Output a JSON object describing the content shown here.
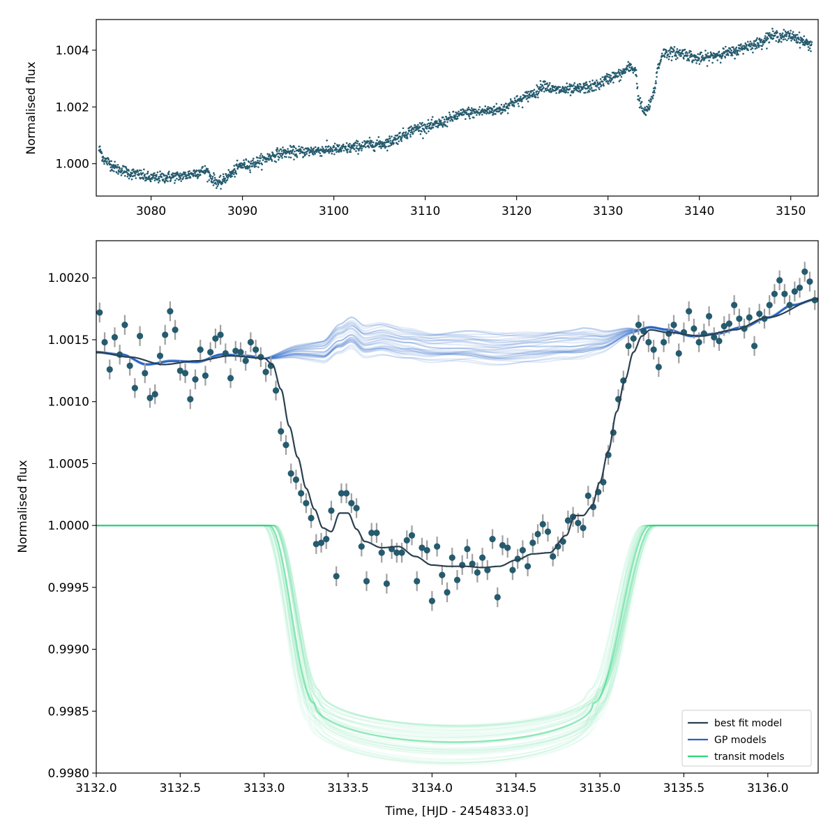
{
  "colors": {
    "data_point": "#255b6e",
    "error_bar": "#a0a0a0",
    "best_fit": "#2a3f50",
    "gp": "#2462c8",
    "transit": "#2ed67a",
    "axis": "#000000"
  },
  "chart_data": [
    {
      "id": "top",
      "type": "scatter",
      "title": "",
      "xlabel": "",
      "ylabel": "Normalised flux",
      "xlim": [
        3074.0,
        3153.0
      ],
      "ylim": [
        0.99886,
        1.00508
      ],
      "xticks": [
        3080,
        3090,
        3100,
        3110,
        3120,
        3130,
        3140,
        3150
      ],
      "xtick_labels": [
        "3080",
        "3090",
        "3100",
        "3110",
        "3120",
        "3130",
        "3140",
        "3150"
      ],
      "yticks": [
        1.0,
        1.002,
        1.004
      ],
      "ytick_labels": [
        "1.000",
        "1.002",
        "1.004"
      ],
      "trend_nodes": {
        "x": [
          3074.3,
          3075.0,
          3076.5,
          3078.0,
          3080.0,
          3083.0,
          3086.0,
          3086.8,
          3087.5,
          3088.5,
          3090.0,
          3095.0,
          3100.0,
          3105.0,
          3110.0,
          3115.0,
          3118.0,
          3120.0,
          3122.0,
          3123.0,
          3124.0,
          3126.0,
          3128.0,
          3131.0,
          3132.5,
          3133.0,
          3133.4,
          3134.0,
          3134.5,
          3135.0,
          3135.5,
          3136.0,
          3138.0,
          3140.0,
          3143.0,
          3146.0,
          3148.0,
          3150.0,
          3152.3
        ],
        "y": [
          1.0005,
          1.0001,
          0.9998,
          0.99965,
          0.9995,
          0.99955,
          0.99975,
          0.99945,
          0.9993,
          0.9996,
          0.99995,
          1.0004,
          1.0005,
          1.0007,
          1.0013,
          1.0018,
          1.0019,
          1.0022,
          1.0025,
          1.0028,
          1.0026,
          1.0026,
          1.0027,
          1.0031,
          1.0034,
          1.0033,
          1.0022,
          1.0018,
          1.002,
          1.0025,
          1.0034,
          1.0039,
          1.0039,
          1.0037,
          1.0039,
          1.0042,
          1.0045,
          1.0045,
          1.0042
        ]
      },
      "scatter_sigma": 0.00018,
      "n_points": 2300
    },
    {
      "id": "bottom",
      "type": "line",
      "title": "",
      "xlabel": "Time, [HJD - 2454833.0]",
      "ylabel": "Normalised flux",
      "xlim": [
        3132.0,
        3136.3
      ],
      "ylim": [
        0.998,
        1.0023
      ],
      "xticks": [
        3132.0,
        3132.5,
        3133.0,
        3133.5,
        3134.0,
        3134.5,
        3135.0,
        3135.5,
        3136.0
      ],
      "xtick_labels": [
        "3132.0",
        "3132.5",
        "3133.0",
        "3133.5",
        "3134.0",
        "3134.5",
        "3135.0",
        "3135.5",
        "3136.0"
      ],
      "yticks": [
        0.998,
        0.9985,
        0.999,
        0.9995,
        1.0,
        1.0005,
        1.001,
        1.0015,
        1.002
      ],
      "ytick_labels": [
        "0.9980",
        "0.9985",
        "0.9990",
        "0.9995",
        "1.0000",
        "1.0005",
        "1.0010",
        "1.0015",
        "1.0020"
      ],
      "transit": {
        "t_center": 3134.185,
        "ingress_start": 3133.03,
        "ingress_end": 3133.3,
        "egress_start": 3134.96,
        "egress_end": 3135.3,
        "depth_min": 1.0016,
        "depth_max": 1.00195,
        "n_models": 40
      },
      "gp_baseline": {
        "x": [
          3132.0,
          3132.15,
          3132.3,
          3132.45,
          3132.6,
          3132.75,
          3132.9,
          3133.0,
          3133.2,
          3133.35,
          3133.45,
          3133.52,
          3133.6,
          3133.7,
          3133.85,
          3134.0,
          3134.2,
          3134.4,
          3134.6,
          3134.8,
          3135.0,
          3135.2,
          3135.3,
          3135.4,
          3135.55,
          3135.7,
          3135.85,
          3136.0,
          3136.15,
          3136.3
        ],
        "y": [
          1.0014,
          1.00138,
          1.0013,
          1.00133,
          1.00132,
          1.00138,
          1.00137,
          1.00135,
          1.0014,
          1.0014,
          1.0015,
          1.00155,
          1.00148,
          1.0015,
          1.00146,
          1.00143,
          1.00144,
          1.00142,
          1.00143,
          1.00145,
          1.00148,
          1.00157,
          1.0016,
          1.00158,
          1.00153,
          1.00155,
          1.0016,
          1.00168,
          1.00178,
          1.00183
        ]
      },
      "best_fit": {
        "x": [
          3132.0,
          3132.2,
          3132.4,
          3132.6,
          3132.8,
          3133.0,
          3133.05,
          3133.1,
          3133.15,
          3133.2,
          3133.25,
          3133.3,
          3133.35,
          3133.4,
          3133.45,
          3133.5,
          3133.55,
          3133.6,
          3133.7,
          3133.8,
          3133.9,
          3134.0,
          3134.1,
          3134.2,
          3134.3,
          3134.4,
          3134.5,
          3134.6,
          3134.7,
          3134.8,
          3134.85,
          3134.9,
          3134.95,
          3135.0,
          3135.05,
          3135.1,
          3135.15,
          3135.2,
          3135.25,
          3135.3,
          3135.4,
          3135.6,
          3135.8,
          3136.0,
          3136.3
        ],
        "y": [
          1.0014,
          1.00136,
          1.0013,
          1.00133,
          1.00137,
          1.00135,
          1.0013,
          1.0011,
          1.0008,
          1.00055,
          1.0003,
          1.00013,
          0.99998,
          0.99995,
          1.0001,
          1.0001,
          0.99997,
          0.99987,
          0.99982,
          0.99983,
          0.99975,
          0.99968,
          0.99967,
          0.99967,
          0.99966,
          0.99967,
          0.99972,
          0.99977,
          0.99978,
          0.99992,
          1.00008,
          1.00008,
          1.00015,
          1.00035,
          1.0006,
          1.00092,
          1.00118,
          1.0014,
          1.00153,
          1.00158,
          1.00156,
          1.00153,
          1.00158,
          1.00168,
          1.00183
        ]
      },
      "points": {
        "x": [
          3132.02,
          3132.05,
          3132.08,
          3132.11,
          3132.14,
          3132.17,
          3132.2,
          3132.23,
          3132.26,
          3132.29,
          3132.32,
          3132.35,
          3132.38,
          3132.41,
          3132.44,
          3132.47,
          3132.5,
          3132.53,
          3132.56,
          3132.59,
          3132.62,
          3132.65,
          3132.68,
          3132.71,
          3132.74,
          3132.77,
          3132.8,
          3132.83,
          3132.86,
          3132.89,
          3132.92,
          3132.95,
          3132.98,
          3133.01,
          3133.04,
          3133.07,
          3133.1,
          3133.13,
          3133.16,
          3133.19,
          3133.22,
          3133.25,
          3133.28,
          3133.31,
          3133.34,
          3133.37,
          3133.4,
          3133.43,
          3133.46,
          3133.49,
          3133.52,
          3133.55,
          3133.58,
          3133.61,
          3133.64,
          3133.67,
          3133.7,
          3133.73,
          3133.76,
          3133.79,
          3133.82,
          3133.85,
          3133.88,
          3133.91,
          3133.94,
          3133.97,
          3134.0,
          3134.03,
          3134.06,
          3134.09,
          3134.12,
          3134.15,
          3134.18,
          3134.21,
          3134.24,
          3134.27,
          3134.3,
          3134.33,
          3134.36,
          3134.39,
          3134.42,
          3134.45,
          3134.48,
          3134.51,
          3134.54,
          3134.57,
          3134.6,
          3134.63,
          3134.66,
          3134.69,
          3134.72,
          3134.75,
          3134.78,
          3134.81,
          3134.84,
          3134.87,
          3134.9,
          3134.93,
          3134.96,
          3134.99,
          3135.02,
          3135.05,
          3135.08,
          3135.11,
          3135.14,
          3135.17,
          3135.2,
          3135.23,
          3135.26,
          3135.29,
          3135.32,
          3135.35,
          3135.38,
          3135.41,
          3135.44,
          3135.47,
          3135.5,
          3135.53,
          3135.56,
          3135.59,
          3135.62,
          3135.65,
          3135.68,
          3135.71,
          3135.74,
          3135.77,
          3135.8,
          3135.83,
          3135.86,
          3135.89,
          3135.92,
          3135.95,
          3135.98,
          3136.01,
          3136.04,
          3136.07,
          3136.1,
          3136.13,
          3136.16,
          3136.19,
          3136.22,
          3136.25,
          3136.28
        ],
        "y": [
          1.00172,
          1.00148,
          1.00126,
          1.00152,
          1.00138,
          1.00162,
          1.00129,
          1.00111,
          1.00153,
          1.00123,
          1.00103,
          1.00106,
          1.00137,
          1.00154,
          1.00173,
          1.00158,
          1.00125,
          1.00123,
          1.00102,
          1.00118,
          1.00142,
          1.00121,
          1.0014,
          1.00151,
          1.00154,
          1.00139,
          1.00119,
          1.00141,
          1.0014,
          1.00133,
          1.00148,
          1.00142,
          1.00136,
          1.00124,
          1.00129,
          1.00109,
          1.00076,
          1.00065,
          1.00042,
          1.00037,
          1.00026,
          1.00018,
          1.00006,
          0.99985,
          0.99986,
          0.99989,
          1.00012,
          0.99959,
          1.00026,
          1.00026,
          1.00018,
          1.00014,
          0.99983,
          0.99955,
          0.99994,
          0.99994,
          0.99978,
          0.99953,
          0.99981,
          0.99978,
          0.99978,
          0.99988,
          0.99992,
          0.99955,
          0.99982,
          0.9998,
          0.99939,
          0.99983,
          0.9996,
          0.99946,
          0.99974,
          0.99956,
          0.99968,
          0.99981,
          0.99969,
          0.99962,
          0.99974,
          0.99964,
          0.99989,
          0.99942,
          0.99984,
          0.99982,
          0.99964,
          0.99973,
          0.9998,
          0.99967,
          0.99986,
          0.99993,
          1.00001,
          0.99995,
          0.99975,
          0.99983,
          0.99987,
          1.00004,
          1.00007,
          1.00002,
          0.99998,
          1.00024,
          1.00015,
          1.00027,
          1.00035,
          1.00057,
          1.00075,
          1.00102,
          1.00117,
          1.00145,
          1.00151,
          1.00162,
          1.00157,
          1.00148,
          1.00142,
          1.00128,
          1.00148,
          1.00155,
          1.00162,
          1.00139,
          1.00156,
          1.00173,
          1.00159,
          1.00148,
          1.00155,
          1.00169,
          1.00152,
          1.00149,
          1.00161,
          1.00163,
          1.00178,
          1.00167,
          1.00159,
          1.00168,
          1.00145,
          1.00171,
          1.00167,
          1.00178,
          1.00187,
          1.00198,
          1.00187,
          1.00178,
          1.00189,
          1.00192,
          1.00205,
          1.00197,
          1.00182
        ],
        "error": 8e-05
      },
      "legend": {
        "position": "lower right",
        "entries": [
          "best fit model",
          "GP models",
          "transit models"
        ]
      }
    }
  ]
}
